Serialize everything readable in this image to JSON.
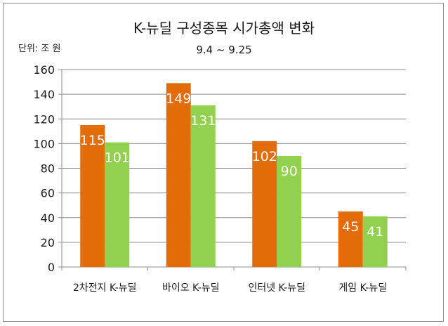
{
  "unit_label": "단위: 조 원",
  "chart_data": {
    "type": "bar",
    "title": "K-뉴딜 구성종목 시가총액 변화",
    "subtitle": "9.4 ~ 9.25",
    "categories": [
      "2차전지 K-뉴딜",
      "바이오 K-뉴딜",
      "인터넷 K-뉴딜",
      "게임 K-뉴딜"
    ],
    "series": [
      {
        "values": [
          115,
          149,
          102,
          45
        ],
        "color": "#e36c09"
      },
      {
        "values": [
          101,
          131,
          90,
          41
        ],
        "color": "#92d050"
      }
    ],
    "ylim": [
      0,
      160
    ],
    "yticks": [
      0,
      20,
      40,
      60,
      80,
      100,
      120,
      140,
      160
    ],
    "grid": true,
    "legend": "none"
  }
}
